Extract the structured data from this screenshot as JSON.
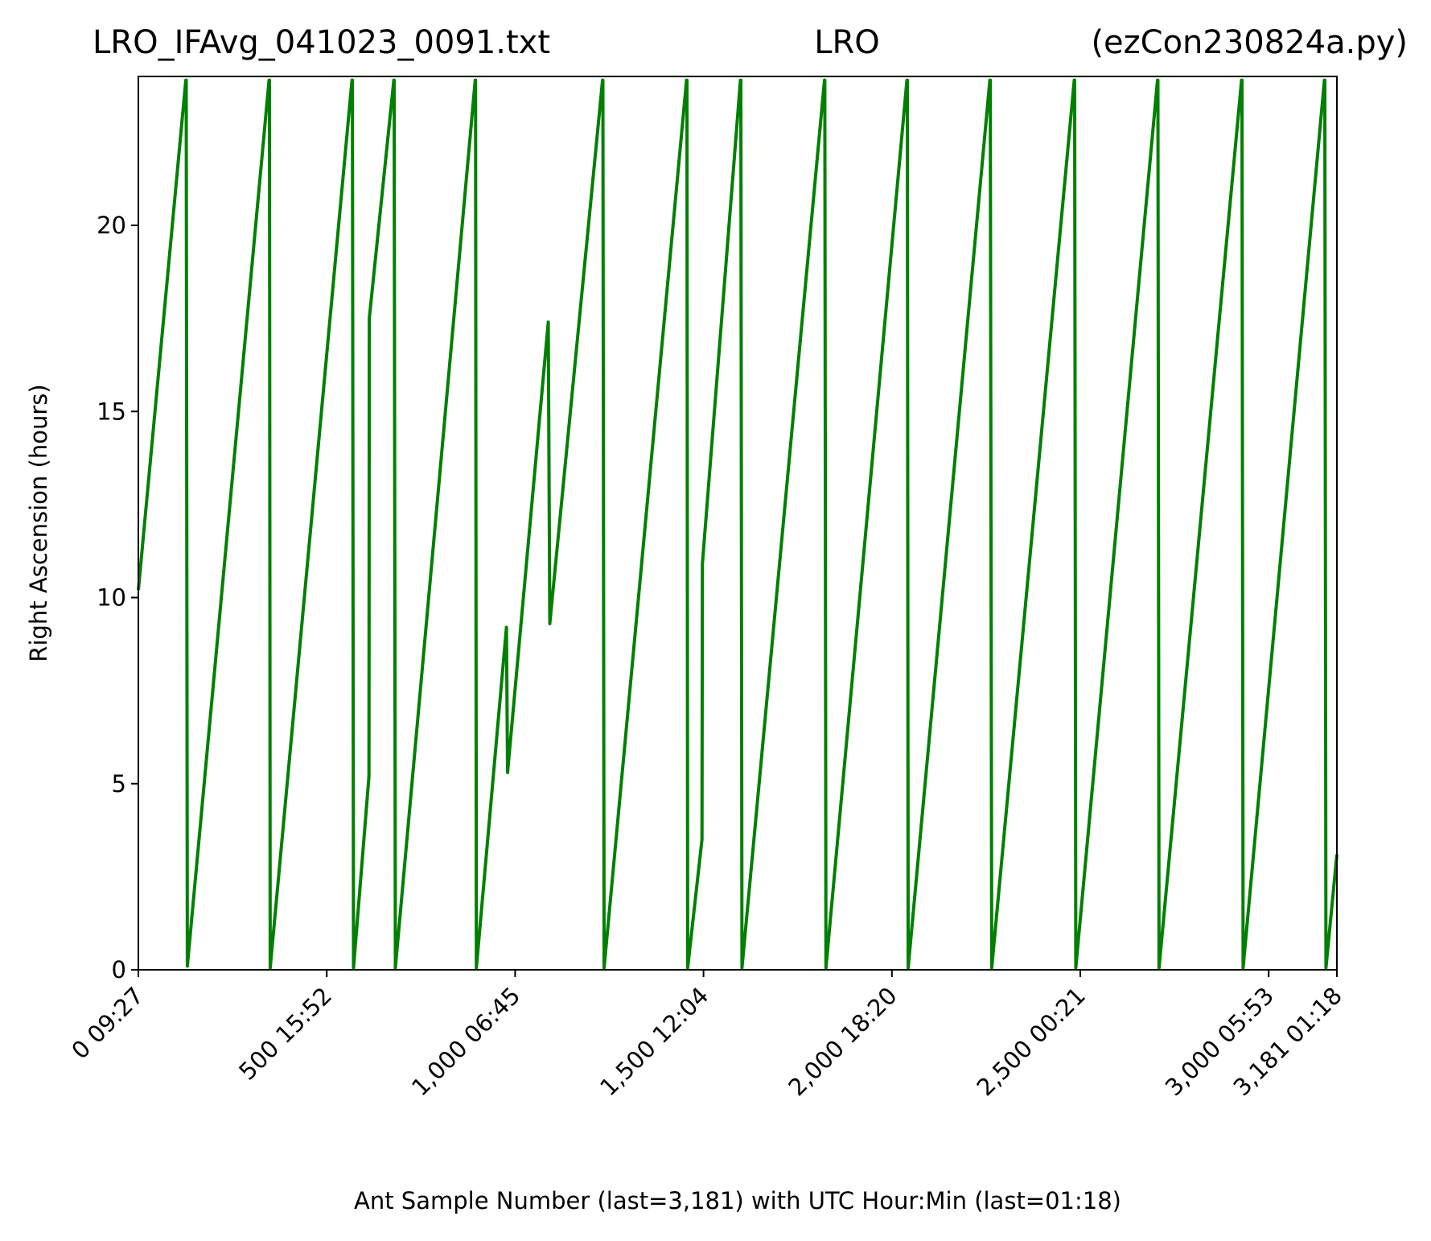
{
  "chart_data": {
    "type": "line",
    "title_left": "LRO_IFAvg_041023_0091.txt",
    "title_center": "LRO",
    "title_right": "(ezCon230824a.py)",
    "xlabel": "Ant Sample Number (last=3,181) with UTC Hour:Min (last=01:18)",
    "ylabel": "Right Ascension (hours)",
    "xlim": [
      0,
      3181
    ],
    "ylim": [
      0,
      24
    ],
    "x_ticks": [
      {
        "value": 0,
        "label": "0  09:27"
      },
      {
        "value": 500,
        "label": "500  15:52"
      },
      {
        "value": 1000,
        "label": "1,000  06:45"
      },
      {
        "value": 1500,
        "label": "1,500  12:04"
      },
      {
        "value": 2000,
        "label": "2,000  18:20"
      },
      {
        "value": 2500,
        "label": "2,500  00:21"
      },
      {
        "value": 3000,
        "label": "3,000  05:53"
      },
      {
        "value": 3181,
        "label": "3,181  01:18"
      }
    ],
    "y_ticks": [
      {
        "value": 0,
        "label": "0"
      },
      {
        "value": 5,
        "label": "5"
      },
      {
        "value": 10,
        "label": "10"
      },
      {
        "value": 15,
        "label": "15"
      },
      {
        "value": 20,
        "label": "20"
      }
    ],
    "grid": false,
    "series": [
      {
        "color": "#008000",
        "x": [
          0,
          126,
          127,
          130,
          347,
          348,
          350,
          567,
          568,
          571,
          612,
          613,
          678,
          679,
          682,
          894,
          895,
          897,
          977,
          980,
          1088,
          1092,
          1232,
          1233,
          1236,
          1455,
          1456,
          1458,
          1496,
          1497,
          1598,
          1599,
          1602,
          1821,
          1822,
          1825,
          2040,
          2041,
          2043,
          2260,
          2261,
          2265,
          2484,
          2485,
          2488,
          2705,
          2706,
          2709,
          2928,
          2929,
          2932,
          3148,
          3149,
          3152,
          3181
        ],
        "y": [
          10.2,
          23.9,
          23.9,
          0.1,
          23.9,
          23.9,
          0.05,
          23.9,
          23.9,
          0.05,
          5.2,
          17.5,
          23.9,
          23.9,
          0.05,
          23.9,
          23.9,
          0.05,
          9.2,
          5.3,
          17.4,
          9.3,
          23.9,
          23.9,
          0.05,
          23.9,
          23.9,
          0.05,
          3.5,
          10.9,
          23.9,
          23.9,
          0.05,
          23.9,
          23.9,
          0.05,
          23.9,
          23.9,
          0.05,
          23.9,
          23.9,
          0.05,
          23.9,
          23.9,
          0.05,
          23.9,
          23.9,
          0.05,
          23.9,
          23.9,
          0.05,
          23.9,
          23.9,
          0.05,
          3.1
        ]
      }
    ]
  }
}
